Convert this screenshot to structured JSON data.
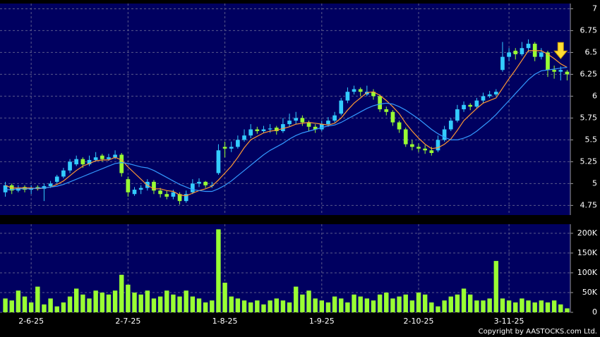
{
  "chart_data": [
    {
      "type": "candlestick",
      "categories": [
        null,
        null,
        null,
        null,
        "2-6-25",
        null,
        null,
        null,
        null,
        null,
        null,
        null,
        null,
        null,
        null,
        null,
        null,
        null,
        null,
        "2-7-25",
        null,
        null,
        null,
        null,
        null,
        null,
        null,
        null,
        null,
        null,
        null,
        null,
        null,
        null,
        "1-8-25",
        null,
        null,
        null,
        null,
        null,
        null,
        null,
        null,
        null,
        null,
        null,
        null,
        null,
        null,
        "1-9-25",
        null,
        null,
        null,
        null,
        null,
        null,
        null,
        null,
        null,
        null,
        null,
        null,
        null,
        null,
        "2-10-25",
        null,
        null,
        null,
        null,
        null,
        null,
        null,
        null,
        null,
        null,
        null,
        null,
        null,
        "3-11-25",
        null,
        null,
        null,
        null,
        null,
        null,
        null,
        null,
        null
      ],
      "candles": [
        [
          4.9,
          5.02,
          4.85,
          4.98
        ],
        [
          4.98,
          5.0,
          4.88,
          4.92
        ],
        [
          4.92,
          4.98,
          4.9,
          4.95
        ],
        [
          4.96,
          4.98,
          4.9,
          4.93
        ],
        [
          4.93,
          4.98,
          4.88,
          4.95
        ],
        [
          4.96,
          4.98,
          4.92,
          4.94
        ],
        [
          4.94,
          5.0,
          4.8,
          4.97
        ],
        [
          4.97,
          5.03,
          4.95,
          5.0
        ],
        [
          5.02,
          5.1,
          5.0,
          5.08
        ],
        [
          5.08,
          5.18,
          5.06,
          5.15
        ],
        [
          5.15,
          5.28,
          5.12,
          5.25
        ],
        [
          5.22,
          5.32,
          5.2,
          5.28
        ],
        [
          5.28,
          5.3,
          5.18,
          5.22
        ],
        [
          5.22,
          5.32,
          5.2,
          5.27
        ],
        [
          5.27,
          5.36,
          5.25,
          5.3
        ],
        [
          5.32,
          5.34,
          5.25,
          5.28
        ],
        [
          5.28,
          5.34,
          5.26,
          5.3
        ],
        [
          5.3,
          5.38,
          5.28,
          5.33
        ],
        [
          5.33,
          5.35,
          5.08,
          5.12
        ],
        [
          5.05,
          5.08,
          4.85,
          4.9
        ],
        [
          4.88,
          4.96,
          4.86,
          4.93
        ],
        [
          4.93,
          4.98,
          4.88,
          4.95
        ],
        [
          4.95,
          5.05,
          4.92,
          5.02
        ],
        [
          5.02,
          5.04,
          4.88,
          4.92
        ],
        [
          4.92,
          4.95,
          4.84,
          4.88
        ],
        [
          4.88,
          4.92,
          4.82,
          4.85
        ],
        [
          4.85,
          4.93,
          4.82,
          4.9
        ],
        [
          4.88,
          4.9,
          4.76,
          4.8
        ],
        [
          4.8,
          4.92,
          4.78,
          4.88
        ],
        [
          4.9,
          5.05,
          4.88,
          5.0
        ],
        [
          5.0,
          5.06,
          4.96,
          5.02
        ],
        [
          5.02,
          5.03,
          4.95,
          4.98
        ],
        [
          4.98,
          5.02,
          4.95,
          4.98
        ],
        [
          5.12,
          5.45,
          5.1,
          5.38
        ],
        [
          5.42,
          5.48,
          5.3,
          5.4
        ],
        [
          5.4,
          5.48,
          5.36,
          5.42
        ],
        [
          5.42,
          5.55,
          5.4,
          5.5
        ],
        [
          5.5,
          5.62,
          5.48,
          5.55
        ],
        [
          5.55,
          5.68,
          5.52,
          5.62
        ],
        [
          5.62,
          5.65,
          5.57,
          5.6
        ],
        [
          5.6,
          5.66,
          5.58,
          5.62
        ],
        [
          5.62,
          5.68,
          5.58,
          5.63
        ],
        [
          5.64,
          5.66,
          5.56,
          5.6
        ],
        [
          5.6,
          5.75,
          5.58,
          5.68
        ],
        [
          5.68,
          5.8,
          5.65,
          5.72
        ],
        [
          5.72,
          5.82,
          5.68,
          5.75
        ],
        [
          5.75,
          5.78,
          5.66,
          5.7
        ],
        [
          5.7,
          5.72,
          5.6,
          5.65
        ],
        [
          5.65,
          5.68,
          5.58,
          5.62
        ],
        [
          5.62,
          5.72,
          5.6,
          5.68
        ],
        [
          5.68,
          5.76,
          5.65,
          5.72
        ],
        [
          5.72,
          5.82,
          5.7,
          5.78
        ],
        [
          5.8,
          5.98,
          5.78,
          5.95
        ],
        [
          5.95,
          6.1,
          5.92,
          6.05
        ],
        [
          6.05,
          6.12,
          6.02,
          6.08
        ],
        [
          6.08,
          6.1,
          6.0,
          6.05
        ],
        [
          6.02,
          6.12,
          6.0,
          6.05
        ],
        [
          6.05,
          6.08,
          5.96,
          6.0
        ],
        [
          6.0,
          6.02,
          5.82,
          5.85
        ],
        [
          5.85,
          5.88,
          5.78,
          5.82
        ],
        [
          5.82,
          5.84,
          5.66,
          5.7
        ],
        [
          5.7,
          5.72,
          5.58,
          5.62
        ],
        [
          5.62,
          5.64,
          5.42,
          5.45
        ],
        [
          5.45,
          5.5,
          5.38,
          5.42
        ],
        [
          5.42,
          5.46,
          5.36,
          5.4
        ],
        [
          5.4,
          5.44,
          5.34,
          5.38
        ],
        [
          5.38,
          5.42,
          5.32,
          5.35
        ],
        [
          5.38,
          5.55,
          5.36,
          5.5
        ],
        [
          5.5,
          5.66,
          5.48,
          5.62
        ],
        [
          5.62,
          5.75,
          5.6,
          5.72
        ],
        [
          5.72,
          5.9,
          5.7,
          5.85
        ],
        [
          5.85,
          5.94,
          5.82,
          5.9
        ],
        [
          5.9,
          5.92,
          5.84,
          5.88
        ],
        [
          5.88,
          5.98,
          5.86,
          5.95
        ],
        [
          5.95,
          6.04,
          5.92,
          6.0
        ],
        [
          6.0,
          6.06,
          5.98,
          6.02
        ],
        [
          6.02,
          6.08,
          6.0,
          6.05
        ],
        [
          6.3,
          6.62,
          6.28,
          6.45
        ],
        [
          6.45,
          6.55,
          6.4,
          6.5
        ],
        [
          6.52,
          6.55,
          6.42,
          6.48
        ],
        [
          6.48,
          6.62,
          6.46,
          6.55
        ],
        [
          6.55,
          6.65,
          6.5,
          6.6
        ],
        [
          6.6,
          6.62,
          6.4,
          6.45
        ],
        [
          6.45,
          6.55,
          6.42,
          6.5
        ],
        [
          6.5,
          6.52,
          6.22,
          6.3
        ],
        [
          6.3,
          6.35,
          6.2,
          6.28
        ],
        [
          6.28,
          6.34,
          6.18,
          6.3
        ],
        [
          6.28,
          6.3,
          6.18,
          6.25
        ]
      ],
      "up_color": "#33ccff",
      "down_color": "#99ff33",
      "lines": [
        {
          "color": "#ff9933",
          "values": [
            4.98,
            4.95,
            4.95,
            4.95,
            4.95,
            4.94,
            4.95,
            4.96,
            4.99,
            5.03,
            5.09,
            5.15,
            5.2,
            5.23,
            5.26,
            5.27,
            5.27,
            5.3,
            5.27,
            5.19,
            5.12,
            5.05,
            4.98,
            4.94,
            4.94,
            4.92,
            4.91,
            4.87,
            4.86,
            4.89,
            4.92,
            4.94,
            4.97,
            5.04,
            5.12,
            5.2,
            5.3,
            5.41,
            5.5,
            5.54,
            5.58,
            5.6,
            5.61,
            5.63,
            5.65,
            5.68,
            5.69,
            5.7,
            5.69,
            5.68,
            5.67,
            5.69,
            5.75,
            5.84,
            5.92,
            5.98,
            6.04,
            6.05,
            6.01,
            5.95,
            5.88,
            5.8,
            5.69,
            5.6,
            5.52,
            5.45,
            5.4,
            5.41,
            5.45,
            5.51,
            5.61,
            5.72,
            5.79,
            5.86,
            5.92,
            5.95,
            5.98,
            6.09,
            6.2,
            6.3,
            6.41,
            6.52,
            6.52,
            6.52,
            6.48,
            6.43,
            6.37,
            6.33
          ]
        },
        {
          "color": "#3399ff",
          "values": [
            4.93,
            4.93,
            4.94,
            4.94,
            4.94,
            4.95,
            4.95,
            4.96,
            4.97,
            4.99,
            5.02,
            5.05,
            5.08,
            5.11,
            5.14,
            5.17,
            5.2,
            5.23,
            5.24,
            5.23,
            5.21,
            5.19,
            5.18,
            5.15,
            5.11,
            5.07,
            5.03,
            4.99,
            4.96,
            4.93,
            4.92,
            4.91,
            4.91,
            4.94,
            4.98,
            5.03,
            5.09,
            5.15,
            5.21,
            5.27,
            5.33,
            5.38,
            5.42,
            5.46,
            5.51,
            5.55,
            5.58,
            5.6,
            5.62,
            5.64,
            5.66,
            5.67,
            5.7,
            5.74,
            5.78,
            5.82,
            5.86,
            5.89,
            5.91,
            5.92,
            5.91,
            5.88,
            5.84,
            5.79,
            5.74,
            5.68,
            5.62,
            5.57,
            5.53,
            5.5,
            5.5,
            5.52,
            5.55,
            5.6,
            5.66,
            5.72,
            5.79,
            5.87,
            5.95,
            6.03,
            6.11,
            6.19,
            6.25,
            6.29,
            6.3,
            6.31,
            6.32,
            6.33
          ]
        }
      ],
      "ylim": [
        4.64,
        7.06
      ],
      "yticks": [
        4.75,
        5,
        5.25,
        5.5,
        5.75,
        6,
        6.25,
        6.5,
        6.75,
        7
      ],
      "grid": true
    },
    {
      "type": "bar",
      "color": "#99ff33",
      "values": [
        35000,
        30000,
        55000,
        40000,
        25000,
        65000,
        20000,
        35000,
        15000,
        25000,
        40000,
        60000,
        45000,
        35000,
        55000,
        50000,
        45000,
        55000,
        95000,
        70000,
        50000,
        45000,
        55000,
        35000,
        40000,
        55000,
        45000,
        40000,
        55000,
        40000,
        35000,
        25000,
        30000,
        210000,
        75000,
        40000,
        35000,
        30000,
        25000,
        30000,
        20000,
        30000,
        35000,
        30000,
        25000,
        65000,
        45000,
        55000,
        35000,
        30000,
        25000,
        40000,
        35000,
        25000,
        45000,
        40000,
        35000,
        30000,
        45000,
        50000,
        35000,
        40000,
        45000,
        30000,
        50000,
        45000,
        25000,
        15000,
        30000,
        40000,
        45000,
        60000,
        45000,
        30000,
        30000,
        35000,
        130000,
        35000,
        30000,
        25000,
        35000,
        30000,
        25000,
        30000,
        25000,
        30000,
        20000,
        10000
      ],
      "ylim": [
        0,
        223000
      ],
      "yticks": [
        0,
        {
          "value": 50000,
          "label": "50K"
        },
        {
          "value": 100000,
          "label": "100K"
        },
        {
          "value": 150000,
          "label": "150K"
        },
        {
          "value": 200000,
          "label": "200K"
        }
      ],
      "grid": true
    }
  ],
  "copyright": "Copyright by AASTOCKS.com Ltd."
}
